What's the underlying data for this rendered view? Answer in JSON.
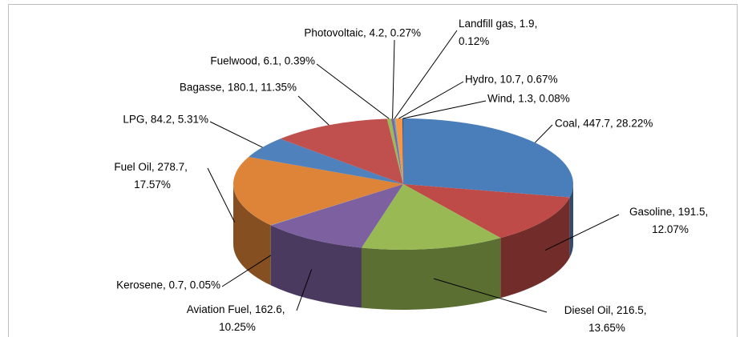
{
  "chart_data": {
    "type": "pie",
    "values": [
      447.7,
      191.5,
      216.5,
      162.6,
      0.7,
      278.7,
      84.2,
      180.1,
      6.1,
      4.2,
      1.9,
      10.7,
      1.3
    ],
    "value_labels": [
      "Coal, 447.7, 28.22%",
      "Gasoline, 191.5, 12.07%",
      "Diesel Oil, 216.5, 13.65%",
      "Aviation Fuel, 162.6, 10.25%",
      "Kerosene, 0.7, 0.05%",
      "Fuel Oil, 278.7, 17.57%",
      "LPG, 84.2, 5.31%",
      "Bagasse, 180.1, 11.35%",
      "Fuelwood, 6.1, 0.39%",
      "Photovoltaic, 4.2, 0.27%",
      "Landfill gas, 1.9, 0.12%",
      "Hydro, 10.7, 0.67%",
      "Wind, 1.3, 0.08%"
    ],
    "colors": [
      "#4a7ebb",
      "#be4b48",
      "#98b954",
      "#7d60a0",
      "#46aac5",
      "#dd8439",
      "#4f81bd",
      "#c0504d",
      "#9bbb59",
      "#8064a2",
      "#4bacc6",
      "#f79646",
      "#2c4d75"
    ]
  }
}
